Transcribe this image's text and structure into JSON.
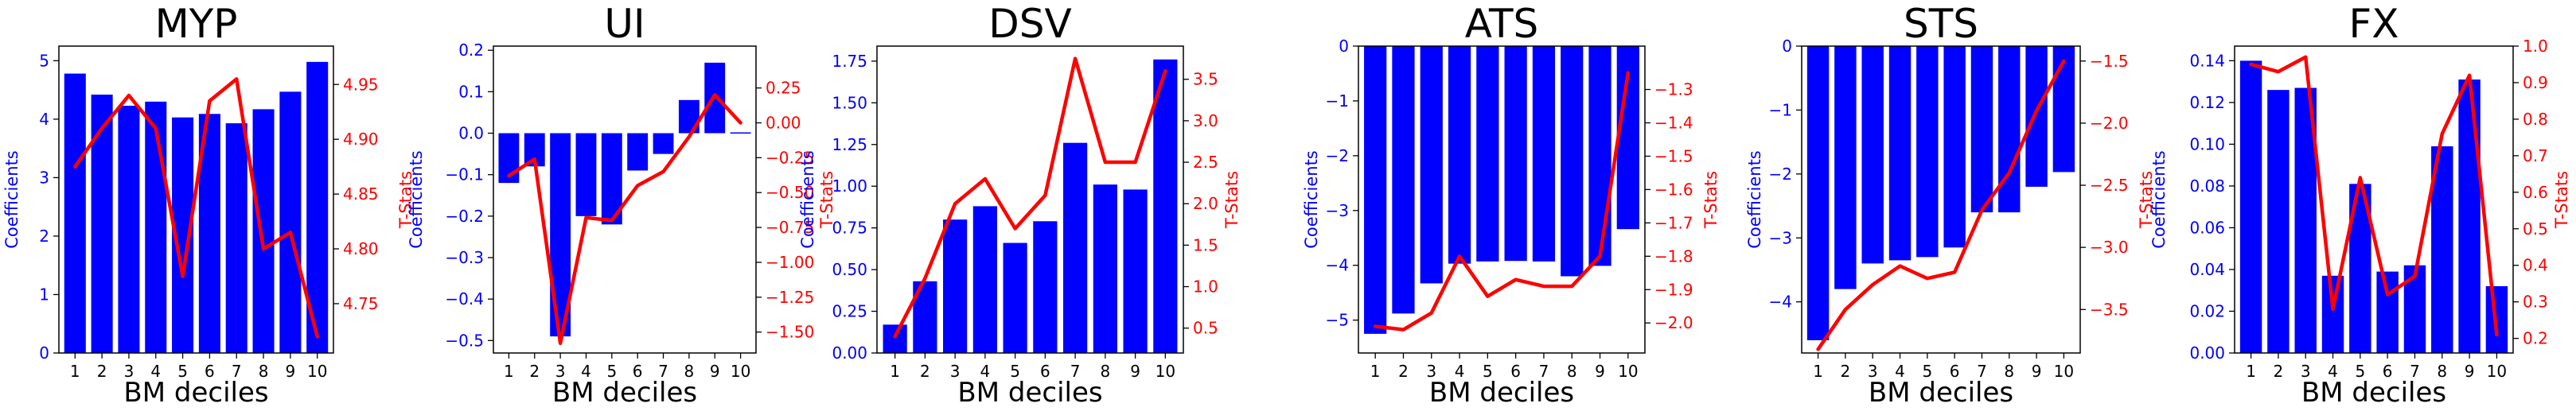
{
  "figure": {
    "bar_color": "#0000ff",
    "line_color": "#ff0000",
    "left_axis_color": "#0000ff",
    "right_axis_color": "#ff0000"
  },
  "chart_data": [
    {
      "type": "bar",
      "title": "MYP",
      "xlabel": "BM deciles",
      "ylabel": "Coefficients",
      "y2label": "T-Stats",
      "categories": [
        "1",
        "2",
        "3",
        "4",
        "5",
        "6",
        "7",
        "8",
        "9",
        "10"
      ],
      "ylim": [
        0,
        5.25
      ],
      "y2lim": [
        4.705,
        4.985
      ],
      "yticks": [
        0,
        1,
        2,
        3,
        4,
        5
      ],
      "ytick_labels": [
        "0",
        "1",
        "2",
        "3",
        "4",
        "5"
      ],
      "y2ticks": [
        4.75,
        4.8,
        4.85,
        4.9,
        4.95
      ],
      "y2tick_labels": [
        "4.75",
        "4.80",
        "4.85",
        "4.90",
        "4.95"
      ],
      "series": [
        {
          "values": [
            4.78,
            4.42,
            4.23,
            4.3,
            4.03,
            4.09,
            3.93,
            4.17,
            4.47,
            4.98
          ]
        },
        {
          "values": [
            4.875,
            4.91,
            4.94,
            4.91,
            4.775,
            4.935,
            4.955,
            4.8,
            4.815,
            4.72
          ]
        }
      ]
    },
    {
      "type": "bar",
      "title": "UI",
      "xlabel": "BM deciles",
      "ylabel": "Coefficients",
      "y2label": "T-Stats",
      "categories": [
        "1",
        "2",
        "3",
        "4",
        "5",
        "6",
        "7",
        "8",
        "9",
        "10"
      ],
      "ylim": [
        -0.53,
        0.21
      ],
      "y2lim": [
        -1.65,
        0.55
      ],
      "yticks": [
        -0.5,
        -0.4,
        -0.3,
        -0.2,
        -0.1,
        0.0,
        0.1,
        0.2
      ],
      "ytick_labels": [
        "−0.5",
        "−0.4",
        "−0.3",
        "−0.2",
        "−0.1",
        "0.0",
        "0.1",
        "0.2"
      ],
      "y2ticks": [
        -1.5,
        -1.25,
        -1.0,
        -0.75,
        -0.5,
        -0.25,
        0.0,
        0.25
      ],
      "y2tick_labels": [
        "−1.50",
        "−1.25",
        "−1.00",
        "−0.75",
        "−0.50",
        "−0.25",
        "0.00",
        "0.25"
      ],
      "series": [
        {
          "values": [
            -0.12,
            -0.08,
            -0.49,
            -0.2,
            -0.22,
            -0.09,
            -0.05,
            0.08,
            0.17,
            0.002
          ]
        },
        {
          "values": [
            -0.38,
            -0.26,
            -1.58,
            -0.68,
            -0.7,
            -0.45,
            -0.35,
            -0.1,
            0.2,
            0.0
          ]
        }
      ]
    },
    {
      "type": "bar",
      "title": "DSV",
      "xlabel": "BM deciles",
      "ylabel": "Coefficients",
      "y2label": "T-Stats",
      "categories": [
        "1",
        "2",
        "3",
        "4",
        "5",
        "6",
        "7",
        "8",
        "9",
        "10"
      ],
      "ylim": [
        0,
        1.84
      ],
      "y2lim": [
        0.2,
        3.9
      ],
      "yticks": [
        0,
        0.25,
        0.5,
        0.75,
        1.0,
        1.25,
        1.5,
        1.75
      ],
      "ytick_labels": [
        "0.00",
        "0.25",
        "0.50",
        "0.75",
        "1.00",
        "1.25",
        "1.50",
        "1.75"
      ],
      "y2ticks": [
        0.5,
        1.0,
        1.5,
        2.0,
        2.5,
        3.0,
        3.5
      ],
      "y2tick_labels": [
        "0.5",
        "1.0",
        "1.5",
        "2.0",
        "2.5",
        "3.0",
        "3.5"
      ],
      "series": [
        {
          "values": [
            0.17,
            0.43,
            0.8,
            0.88,
            0.66,
            0.79,
            1.26,
            1.01,
            0.98,
            1.76
          ]
        },
        {
          "values": [
            0.4,
            1.1,
            2.0,
            2.3,
            1.7,
            2.1,
            3.75,
            2.5,
            2.5,
            3.6
          ]
        }
      ]
    },
    {
      "type": "bar",
      "title": "ATS",
      "xlabel": "BM deciles",
      "ylabel": "Coefficients",
      "y2label": "T-Stats",
      "categories": [
        "1",
        "2",
        "3",
        "4",
        "5",
        "6",
        "7",
        "8",
        "9",
        "10"
      ],
      "ylim": [
        -5.6,
        0
      ],
      "y2lim": [
        -2.09,
        -1.17
      ],
      "yticks": [
        -5,
        -4,
        -3,
        -2,
        -1,
        0
      ],
      "ytick_labels": [
        "−5",
        "−4",
        "−3",
        "−2",
        "−1",
        "0"
      ],
      "y2ticks": [
        -2.0,
        -1.9,
        -1.8,
        -1.7,
        -1.6,
        -1.5,
        -1.4,
        -1.3
      ],
      "y2tick_labels": [
        "−2.0",
        "−1.9",
        "−1.8",
        "−1.7",
        "−1.6",
        "−1.5",
        "−1.4",
        "−1.3"
      ],
      "series": [
        {
          "values": [
            -5.25,
            -4.88,
            -4.33,
            -3.97,
            -3.93,
            -3.92,
            -3.93,
            -4.2,
            -4.01,
            -3.34
          ]
        },
        {
          "values": [
            -2.01,
            -2.02,
            -1.97,
            -1.8,
            -1.92,
            -1.87,
            -1.89,
            -1.89,
            -1.8,
            -1.25
          ]
        }
      ]
    },
    {
      "type": "bar",
      "title": "STS",
      "xlabel": "BM deciles",
      "ylabel": "Coefficients",
      "y2label": "T-Stats",
      "categories": [
        "1",
        "2",
        "3",
        "4",
        "5",
        "6",
        "7",
        "8",
        "9",
        "10"
      ],
      "ylim": [
        -4.8,
        0
      ],
      "y2lim": [
        -3.85,
        -1.38
      ],
      "yticks": [
        -4,
        -3,
        -2,
        -1,
        0
      ],
      "ytick_labels": [
        "−4",
        "−3",
        "−2",
        "−1",
        "0"
      ],
      "y2ticks": [
        -3.5,
        -3.0,
        -2.5,
        -2.0,
        -1.5
      ],
      "y2tick_labels": [
        "−3.5",
        "−3.0",
        "−2.5",
        "−2.0",
        "−1.5"
      ],
      "series": [
        {
          "values": [
            -4.6,
            -3.8,
            -3.4,
            -3.35,
            -3.3,
            -3.15,
            -2.6,
            -2.6,
            -2.2,
            -1.97
          ]
        },
        {
          "values": [
            -3.82,
            -3.5,
            -3.3,
            -3.15,
            -3.25,
            -3.2,
            -2.7,
            -2.4,
            -1.9,
            -1.5
          ]
        }
      ]
    },
    {
      "type": "bar",
      "title": "FX",
      "xlabel": "BM deciles",
      "ylabel": "Coefficients",
      "y2label": "T-Stats",
      "categories": [
        "1",
        "2",
        "3",
        "4",
        "5",
        "6",
        "7",
        "8",
        "9",
        "10"
      ],
      "ylim": [
        0,
        0.147
      ],
      "y2lim": [
        0.16,
        1.0
      ],
      "yticks": [
        0,
        0.02,
        0.04,
        0.06,
        0.08,
        0.1,
        0.12,
        0.14
      ],
      "ytick_labels": [
        "0.00",
        "0.02",
        "0.04",
        "0.06",
        "0.08",
        "0.10",
        "0.12",
        "0.14"
      ],
      "y2ticks": [
        0.2,
        0.3,
        0.4,
        0.5,
        0.6,
        0.7,
        0.8,
        0.9,
        1.0
      ],
      "y2tick_labels": [
        "0.2",
        "0.3",
        "0.4",
        "0.5",
        "0.6",
        "0.7",
        "0.8",
        "0.9",
        "1.0"
      ],
      "series": [
        {
          "values": [
            0.14,
            0.126,
            0.127,
            0.037,
            0.081,
            0.039,
            0.042,
            0.099,
            0.131,
            0.032
          ]
        },
        {
          "values": [
            0.95,
            0.93,
            0.97,
            0.28,
            0.64,
            0.32,
            0.37,
            0.76,
            0.92,
            0.21
          ]
        }
      ]
    }
  ]
}
